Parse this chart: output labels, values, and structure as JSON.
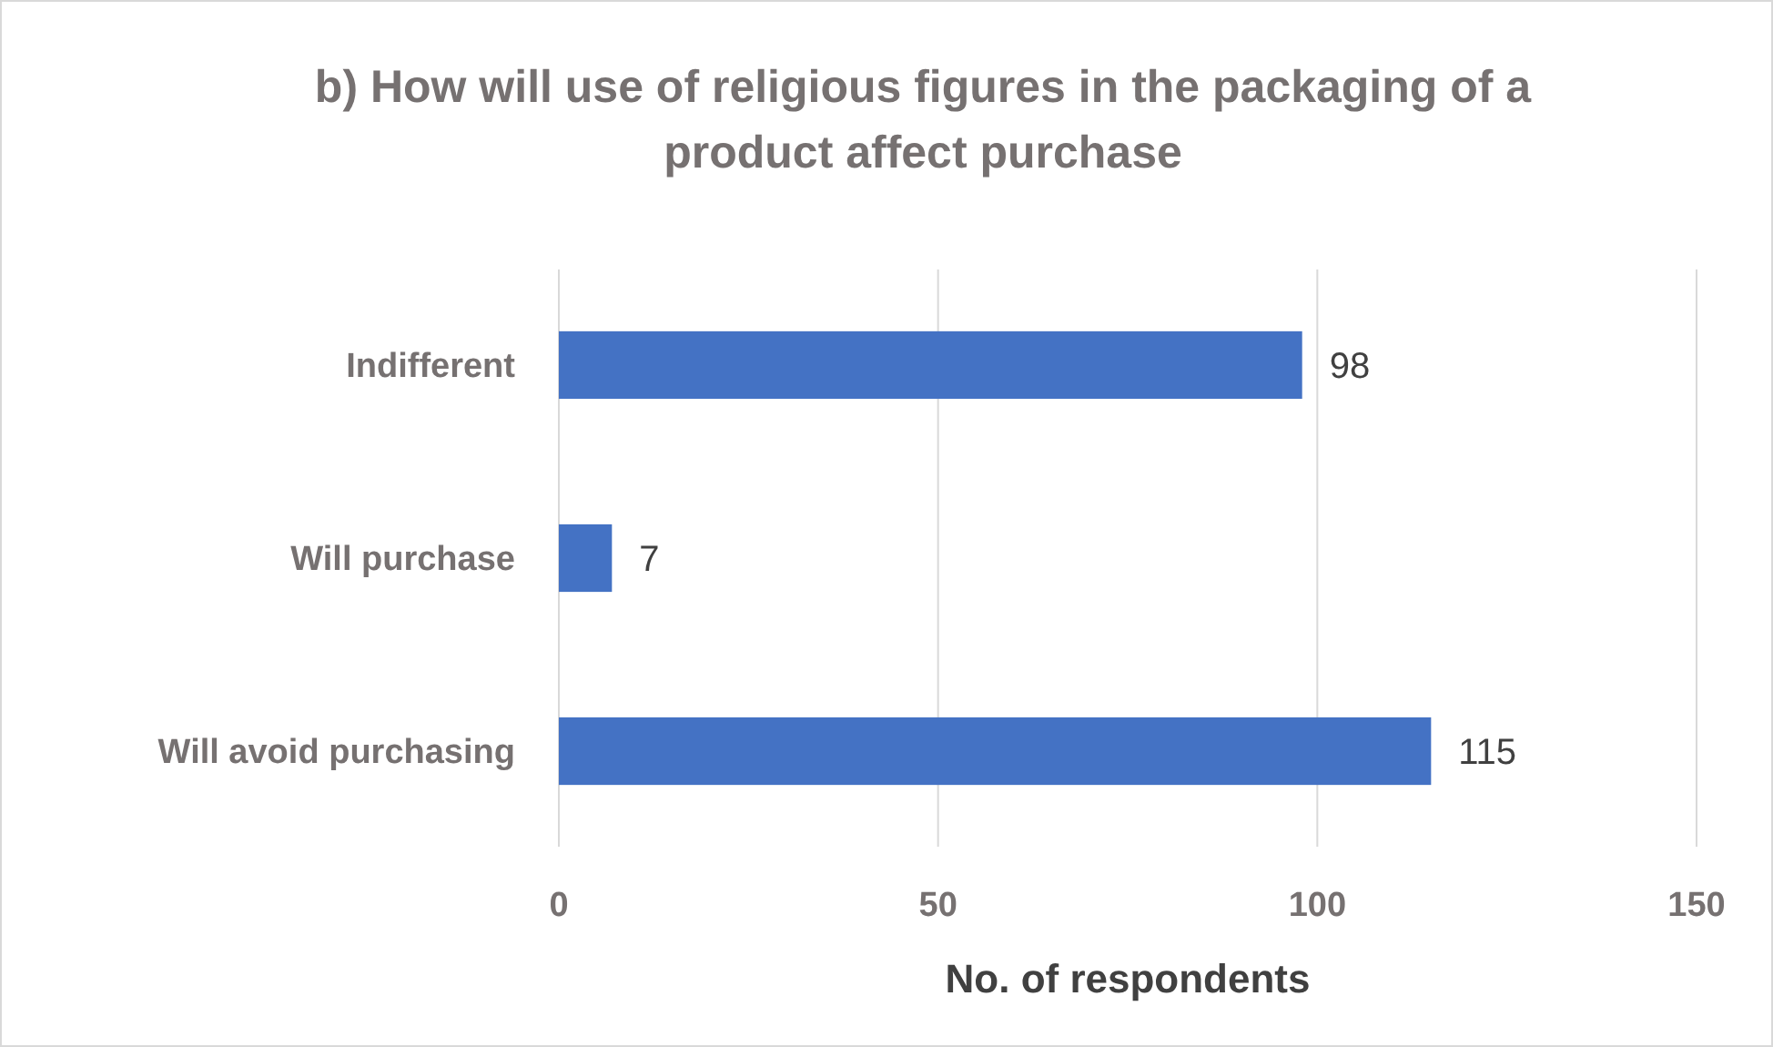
{
  "chart_data": {
    "type": "bar",
    "orientation": "horizontal",
    "title": "b) How will use of religious figures in the packaging of a product affect purchase",
    "xlabel": "No. of respondents",
    "categories": [
      "Indifferent",
      "Will purchase",
      "Will avoid purchasing"
    ],
    "values": [
      98,
      7,
      115
    ],
    "color": "#4472c4",
    "xlim": [
      0,
      150
    ],
    "xticks": [
      0,
      50,
      100,
      150
    ],
    "grid": "x",
    "data_labels": true
  }
}
